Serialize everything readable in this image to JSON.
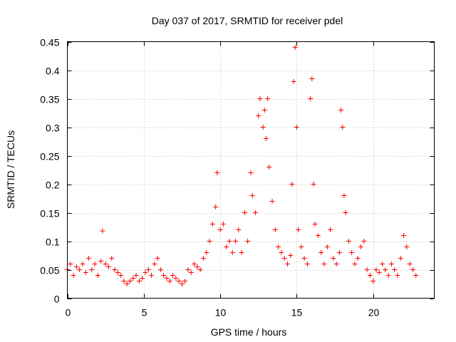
{
  "chart_data": {
    "type": "scatter",
    "title": "Day 037 of 2017, SRMTID for receiver pdel",
    "xlabel": "GPS time / hours",
    "ylabel": "SRMTID / TECUs",
    "xlim": [
      0,
      24
    ],
    "ylim": [
      0,
      0.45
    ],
    "xticks": [
      0,
      5,
      10,
      15,
      20
    ],
    "xtick_labels": [
      "0",
      "5",
      "10",
      "15",
      "20"
    ],
    "yticks": [
      0,
      0.05,
      0.1,
      0.15,
      0.2,
      0.25,
      0.3,
      0.35,
      0.4,
      0.45
    ],
    "ytick_labels": [
      "0",
      "0.05",
      "0.1",
      "0.15",
      "0.2",
      "0.25",
      "0.3",
      "0.35",
      "0.4",
      "0.45"
    ],
    "grid": true,
    "marker": "plus",
    "color": "#ff0000",
    "series": [
      {
        "name": "SRMTID",
        "x": [
          0.0,
          0.2,
          0.4,
          0.6,
          0.8,
          1.0,
          1.2,
          1.4,
          1.6,
          1.8,
          2.0,
          2.2,
          2.3,
          2.5,
          2.7,
          2.9,
          3.1,
          3.3,
          3.5,
          3.7,
          3.9,
          4.1,
          4.3,
          4.5,
          4.7,
          4.9,
          5.1,
          5.3,
          5.5,
          5.7,
          5.9,
          6.1,
          6.3,
          6.5,
          6.7,
          6.9,
          7.1,
          7.3,
          7.5,
          7.7,
          7.9,
          8.1,
          8.3,
          8.5,
          8.7,
          8.9,
          9.1,
          9.3,
          9.5,
          9.7,
          9.8,
          10.0,
          10.2,
          10.4,
          10.6,
          10.8,
          11.0,
          11.2,
          11.4,
          11.6,
          11.8,
          12.0,
          12.1,
          12.3,
          12.5,
          12.6,
          12.8,
          12.9,
          13.0,
          13.1,
          13.2,
          13.4,
          13.6,
          13.8,
          14.0,
          14.2,
          14.4,
          14.6,
          14.7,
          14.8,
          14.9,
          15.0,
          15.1,
          15.3,
          15.5,
          15.7,
          15.9,
          16.0,
          16.1,
          16.2,
          16.4,
          16.6,
          16.8,
          17.0,
          17.2,
          17.4,
          17.6,
          17.8,
          17.9,
          18.0,
          18.1,
          18.2,
          18.4,
          18.6,
          18.8,
          19.0,
          19.2,
          19.4,
          19.6,
          19.8,
          20.0,
          20.2,
          20.4,
          20.6,
          20.8,
          21.0,
          21.2,
          21.4,
          21.6,
          21.8,
          22.0,
          22.2,
          22.4,
          22.6,
          22.8
        ],
        "y": [
          0.05,
          0.06,
          0.04,
          0.055,
          0.05,
          0.06,
          0.045,
          0.07,
          0.05,
          0.06,
          0.04,
          0.065,
          0.118,
          0.06,
          0.055,
          0.07,
          0.05,
          0.045,
          0.04,
          0.03,
          0.025,
          0.03,
          0.035,
          0.04,
          0.03,
          0.035,
          0.045,
          0.05,
          0.04,
          0.06,
          0.07,
          0.05,
          0.04,
          0.035,
          0.03,
          0.04,
          0.035,
          0.03,
          0.025,
          0.03,
          0.05,
          0.045,
          0.06,
          0.055,
          0.05,
          0.07,
          0.08,
          0.1,
          0.13,
          0.16,
          0.22,
          0.12,
          0.13,
          0.09,
          0.1,
          0.08,
          0.1,
          0.12,
          0.08,
          0.15,
          0.1,
          0.22,
          0.18,
          0.15,
          0.32,
          0.35,
          0.3,
          0.33,
          0.28,
          0.35,
          0.23,
          0.17,
          0.12,
          0.09,
          0.08,
          0.07,
          0.06,
          0.075,
          0.2,
          0.38,
          0.44,
          0.3,
          0.12,
          0.09,
          0.07,
          0.06,
          0.35,
          0.385,
          0.2,
          0.13,
          0.11,
          0.08,
          0.06,
          0.09,
          0.12,
          0.07,
          0.06,
          0.08,
          0.33,
          0.3,
          0.18,
          0.15,
          0.1,
          0.08,
          0.06,
          0.07,
          0.09,
          0.1,
          0.05,
          0.04,
          0.03,
          0.05,
          0.045,
          0.06,
          0.05,
          0.04,
          0.06,
          0.05,
          0.04,
          0.07,
          0.11,
          0.09,
          0.06,
          0.05,
          0.04
        ]
      }
    ]
  }
}
